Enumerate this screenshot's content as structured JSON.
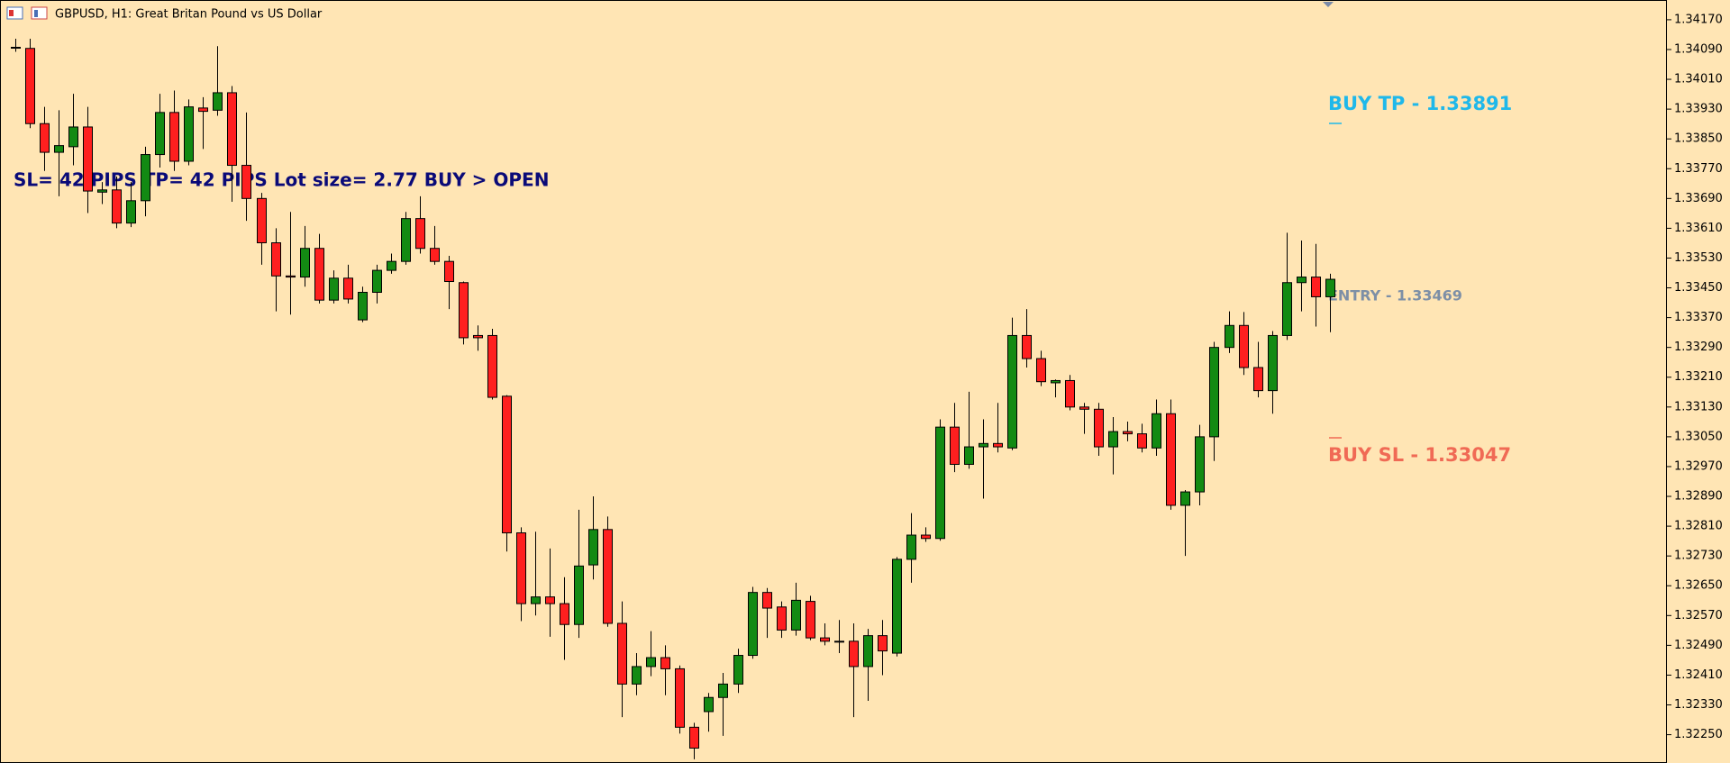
{
  "chart_data": {
    "type": "candlestick",
    "title": "GBPUSD, H1:  Great Britan Pound vs US Dollar",
    "annotations": {
      "status": "SL= 42 PIPS  TP= 42 PIPS  Lot size= 2.77  BUY > OPEN",
      "take_profit": "BUY TP - 1.33891",
      "entry": "ENTRY - 1.33469",
      "stop_loss": "BUY SL - 1.33047"
    },
    "up_color": "#138a13",
    "down_color": "#ff1f1f",
    "grid": false,
    "ylim": [
      1.32174,
      1.34223
    ],
    "yticks": [
      {
        "value": 1.3417,
        "label": "1.34170"
      },
      {
        "value": 1.3409,
        "label": "1.34090"
      },
      {
        "value": 1.3401,
        "label": "1.34010"
      },
      {
        "value": 1.3393,
        "label": "1.33930"
      },
      {
        "value": 1.3385,
        "label": "1.33850"
      },
      {
        "value": 1.3377,
        "label": "1.33770"
      },
      {
        "value": 1.3369,
        "label": "1.33690"
      },
      {
        "value": 1.3361,
        "label": "1.33610"
      },
      {
        "value": 1.3353,
        "label": "1.33530"
      },
      {
        "value": 1.3345,
        "label": "1.33450"
      },
      {
        "value": 1.3337,
        "label": "1.33370"
      },
      {
        "value": 1.3329,
        "label": "1.33290"
      },
      {
        "value": 1.3321,
        "label": "1.33210"
      },
      {
        "value": 1.3313,
        "label": "1.33130"
      },
      {
        "value": 1.3305,
        "label": "1.33050"
      },
      {
        "value": 1.3297,
        "label": "1.32970"
      },
      {
        "value": 1.3289,
        "label": "1.32890"
      },
      {
        "value": 1.3281,
        "label": "1.32810"
      },
      {
        "value": 1.3273,
        "label": "1.32730"
      },
      {
        "value": 1.3265,
        "label": "1.32650"
      },
      {
        "value": 1.3257,
        "label": "1.32570"
      },
      {
        "value": 1.3249,
        "label": "1.32490"
      },
      {
        "value": 1.3241,
        "label": "1.32410"
      },
      {
        "value": 1.3233,
        "label": "1.32330"
      },
      {
        "value": 1.3225,
        "label": "1.32250"
      }
    ],
    "open": [
      1.34096,
      1.34093,
      1.33891,
      1.33814,
      1.33829,
      1.33882,
      1.33707,
      1.33713,
      1.33624,
      1.33684,
      1.33808,
      1.33921,
      1.3379,
      1.33933,
      1.33927,
      1.33974,
      1.33779,
      1.3369,
      1.33571,
      1.33482,
      1.33479,
      1.33556,
      1.33417,
      1.33476,
      1.33364,
      1.33438,
      1.33497,
      1.33521,
      1.33636,
      1.33556,
      1.33521,
      1.33464,
      1.33322,
      1.33322,
      1.33159,
      1.32792,
      1.32602,
      1.3262,
      1.32602,
      1.32546,
      1.32706,
      1.32801,
      1.32549,
      1.32386,
      1.32433,
      1.32457,
      1.32427,
      1.3227,
      1.32312,
      1.3235,
      1.32386,
      1.32463,
      1.32632,
      1.32593,
      1.32531,
      1.32608,
      1.3251,
      1.32501,
      1.32501,
      1.32433,
      1.32516,
      1.32469,
      1.32721,
      1.32786,
      1.32777,
      1.33076,
      1.32976,
      1.33023,
      1.33032,
      1.3302,
      1.33322,
      1.3326,
      1.33195,
      1.33201,
      1.3313,
      1.33124,
      1.33023,
      1.33064,
      1.33058,
      1.3302,
      1.33112,
      1.32866,
      1.32902,
      1.3305,
      1.3329,
      1.33349,
      1.33236,
      1.33174,
      1.33322,
      1.33464,
      1.33479,
      1.33426
    ],
    "high": [
      1.34119,
      1.34119,
      1.33936,
      1.33927,
      1.33971,
      1.33936,
      1.33734,
      1.33749,
      1.33734,
      1.33829,
      1.33971,
      1.3398,
      1.33956,
      1.33962,
      1.34099,
      1.33992,
      1.33921,
      1.33705,
      1.3361,
      1.33654,
      1.33616,
      1.33595,
      1.33497,
      1.33512,
      1.33453,
      1.33512,
      1.33542,
      1.33654,
      1.33696,
      1.33616,
      1.33536,
      1.33467,
      1.33349,
      1.3334,
      1.33162,
      1.32807,
      1.32795,
      1.3275,
      1.32673,
      1.32854,
      1.3289,
      1.32836,
      1.32608,
      1.32469,
      1.32528,
      1.3249,
      1.32436,
      1.32282,
      1.32362,
      1.32416,
      1.32481,
      1.32647,
      1.32644,
      1.32608,
      1.32658,
      1.32623,
      1.32549,
      1.32558,
      1.32549,
      1.32534,
      1.32558,
      1.32727,
      1.32845,
      1.32807,
      1.33097,
      1.33141,
      1.33171,
      1.33097,
      1.33141,
      1.3337,
      1.33393,
      1.33281,
      1.33204,
      1.33216,
      1.33141,
      1.33141,
      1.33103,
      1.33091,
      1.33085,
      1.3315,
      1.3315,
      1.32907,
      1.33082,
      1.33305,
      1.33387,
      1.33385,
      1.33305,
      1.33334,
      1.33598,
      1.33577,
      1.33568,
      1.33488
    ],
    "low": [
      1.34084,
      1.33879,
      1.33764,
      1.33696,
      1.33779,
      1.33651,
      1.33675,
      1.3361,
      1.33613,
      1.33642,
      1.33773,
      1.33764,
      1.33779,
      1.33823,
      1.33912,
      1.33681,
      1.3363,
      1.33512,
      1.33387,
      1.33378,
      1.33453,
      1.33408,
      1.33408,
      1.33408,
      1.33358,
      1.33408,
      1.33488,
      1.33512,
      1.33542,
      1.33512,
      1.33393,
      1.33298,
      1.33281,
      1.3315,
      1.32742,
      1.32555,
      1.3257,
      1.32513,
      1.32451,
      1.3251,
      1.32667,
      1.3254,
      1.32297,
      1.32356,
      1.32407,
      1.32356,
      1.32253,
      1.32184,
      1.32258,
      1.32247,
      1.32362,
      1.32454,
      1.3251,
      1.3251,
      1.32516,
      1.32504,
      1.3249,
      1.32469,
      1.32297,
      1.32341,
      1.3241,
      1.3246,
      1.32658,
      1.32768,
      1.32771,
      1.32955,
      1.32964,
      1.32884,
      1.33008,
      1.33014,
      1.33236,
      1.33186,
      1.33156,
      1.33121,
      1.33058,
      1.32999,
      1.32949,
      1.33038,
      1.33008,
      1.32999,
      1.32854,
      1.3273,
      1.32866,
      1.32985,
      1.33275,
      1.33216,
      1.33156,
      1.33112,
      1.3331,
      1.33387,
      1.33346,
      1.33331
    ],
    "close": [
      1.34096,
      1.33891,
      1.33814,
      1.33832,
      1.33882,
      1.3371,
      1.33713,
      1.33624,
      1.33684,
      1.33808,
      1.33921,
      1.3379,
      1.33936,
      1.33924,
      1.33974,
      1.33779,
      1.3369,
      1.33571,
      1.33482,
      1.33479,
      1.33556,
      1.33417,
      1.33476,
      1.3342,
      1.33438,
      1.33497,
      1.33521,
      1.33636,
      1.33556,
      1.33521,
      1.33467,
      1.33316,
      1.33316,
      1.33156,
      1.32792,
      1.32602,
      1.3262,
      1.32602,
      1.32546,
      1.32703,
      1.32801,
      1.32549,
      1.32386,
      1.32433,
      1.32457,
      1.32427,
      1.3227,
      1.32214,
      1.3235,
      1.32386,
      1.32463,
      1.32632,
      1.3259,
      1.32531,
      1.32611,
      1.3251,
      1.32501,
      1.32501,
      1.32433,
      1.32516,
      1.32475,
      1.32721,
      1.32786,
      1.32777,
      1.33076,
      1.32976,
      1.33023,
      1.33032,
      1.33023,
      1.33322,
      1.3326,
      1.33198,
      1.33201,
      1.3313,
      1.33124,
      1.33023,
      1.33064,
      1.33058,
      1.3302,
      1.33112,
      1.32866,
      1.32902,
      1.3305,
      1.3329,
      1.33349,
      1.33236,
      1.33174,
      1.33322,
      1.33464,
      1.33479,
      1.33426,
      1.33473
    ]
  }
}
